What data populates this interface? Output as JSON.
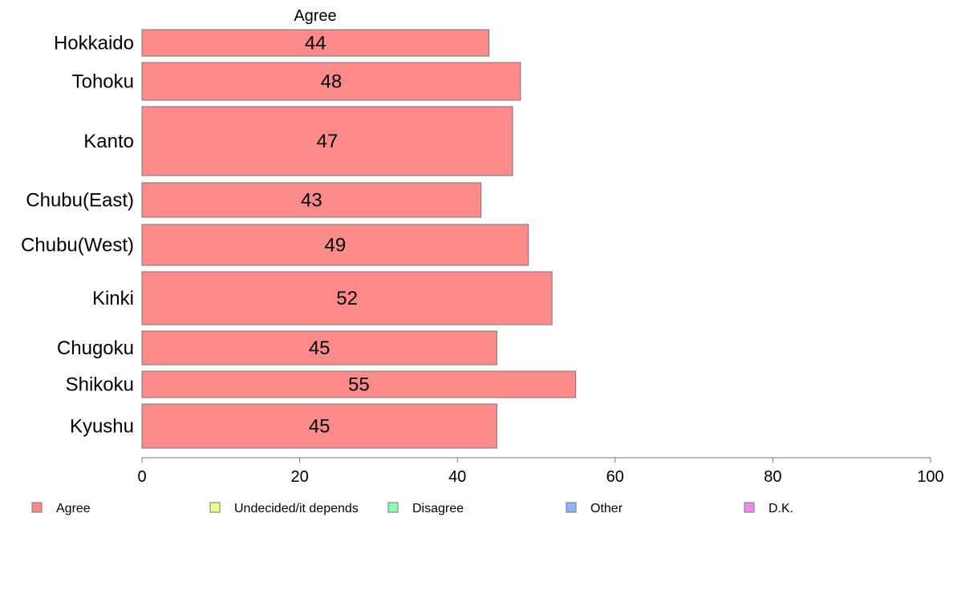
{
  "chart_data": {
    "type": "bar",
    "orientation": "horizontal",
    "title": "",
    "series_title": "Agree",
    "categories": [
      "Hokkaido",
      "Tohoku",
      "Kanto",
      "Chubu(East)",
      "Chubu(West)",
      "Kinki",
      "Chugoku",
      "Shikoku",
      "Kyushu"
    ],
    "series": [
      {
        "name": "Agree",
        "values": [
          44,
          48,
          47,
          43,
          49,
          52,
          45,
          55,
          45
        ],
        "color": "#ff8a8a"
      }
    ],
    "value_labels": [
      "44",
      "48",
      "47",
      "43",
      "49",
      "52",
      "45",
      "55",
      "45"
    ],
    "xlim": [
      0,
      100
    ],
    "xticks": [
      0,
      20,
      40,
      60,
      80,
      100
    ],
    "xtick_labels": [
      "0",
      "20",
      "40",
      "60",
      "80",
      "100"
    ],
    "grid": false,
    "legend": {
      "position": "bottom",
      "items": [
        {
          "label": "Agree",
          "color": "#ff8a8a"
        },
        {
          "label": "Undecided/it depends",
          "color": "#eaff8a"
        },
        {
          "label": "Disagree",
          "color": "#8affb4"
        },
        {
          "label": "Other",
          "color": "#8ab4ff"
        },
        {
          "label": "D.K.",
          "color": "#f08af0"
        }
      ]
    }
  }
}
